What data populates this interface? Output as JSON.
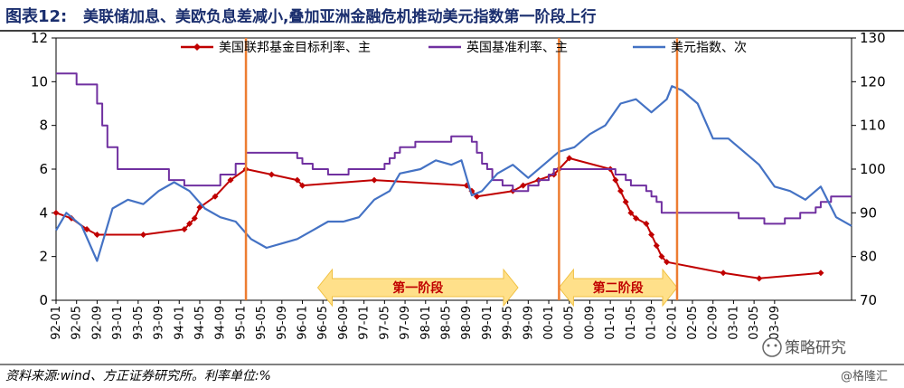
{
  "figure": {
    "title_label": "图表12:",
    "title": "美联储加息、美欧负息差减小,叠加亚洲金融危机推动美元指数第一阶段上行",
    "source": "资料来源:wind、方正证券研究所。利率单位:%"
  },
  "watermarks": {
    "wechat": "策略研究",
    "brand": "@格隆汇"
  },
  "colors": {
    "title": "#1a2e6e",
    "fed": "#c00000",
    "uk": "#7030a0",
    "dxy": "#4472c4",
    "marker_line": "#ed7d31",
    "stage_fill": "#ffe08a",
    "stage_text": "#c00000"
  },
  "chart_data": {
    "type": "line",
    "title": "",
    "xlabel": "",
    "ylabel": "",
    "ylim": [
      0,
      12
    ],
    "y2lim": [
      70,
      130
    ],
    "yticks": [
      "0",
      "2",
      "4",
      "6",
      "8",
      "10",
      "12"
    ],
    "y2ticks": [
      "70",
      "80",
      "90",
      "100",
      "110",
      "120",
      "130"
    ],
    "x_start": "1992-01",
    "x_end": "2004-12",
    "xticks": [
      "92-01",
      "92-05",
      "92-09",
      "93-01",
      "93-05",
      "93-09",
      "94-01",
      "94-05",
      "94-09",
      "95-01",
      "95-05",
      "95-09",
      "96-01",
      "96-05",
      "96-09",
      "97-01",
      "97-05",
      "97-09",
      "98-01",
      "98-05",
      "98-09",
      "99-01",
      "99-05",
      "99-09",
      "00-01",
      "00-05",
      "00-09",
      "01-01",
      "01-05",
      "01-09",
      "02-01",
      "02-05",
      "02-09",
      "03-01",
      "03-05",
      "03-09"
    ],
    "legend_position": "top",
    "grid": false,
    "series": [
      {
        "name": "美国联邦基金目标利率、主",
        "axis": "left",
        "color": "#c00000",
        "style": "line-diamond",
        "x": [
          "1992-01",
          "1992-04",
          "1992-07",
          "1992-09",
          "1993-06",
          "1994-02",
          "1994-03",
          "1994-04",
          "1994-05",
          "1994-08",
          "1994-11",
          "1995-02",
          "1995-07",
          "1995-12",
          "1996-01",
          "1997-03",
          "1998-09",
          "1998-10",
          "1998-11",
          "1999-06",
          "1999-08",
          "1999-11",
          "2000-02",
          "2000-03",
          "2000-05",
          "2001-01",
          "2001-02",
          "2001-03",
          "2001-04",
          "2001-05",
          "2001-06",
          "2001-08",
          "2001-09",
          "2001-10",
          "2001-11",
          "2001-12",
          "2002-11",
          "2003-06",
          "2004-06"
        ],
        "values": [
          4.0,
          3.75,
          3.25,
          3.0,
          3.0,
          3.25,
          3.5,
          3.75,
          4.25,
          4.75,
          5.5,
          6.0,
          5.75,
          5.5,
          5.25,
          5.5,
          5.25,
          5.0,
          4.75,
          5.0,
          5.25,
          5.5,
          5.75,
          6.0,
          6.5,
          6.0,
          5.5,
          5.0,
          4.5,
          4.0,
          3.75,
          3.5,
          3.0,
          2.5,
          2.0,
          1.75,
          1.25,
          1.0,
          1.25
        ]
      },
      {
        "name": "英国基准利率、主",
        "axis": "left",
        "color": "#7030a0",
        "style": "step",
        "x": [
          "1992-01",
          "1992-05",
          "1992-09",
          "1992-10",
          "1992-11",
          "1993-01",
          "1993-11",
          "1994-02",
          "1994-09",
          "1994-12",
          "1995-02",
          "1995-12",
          "1996-01",
          "1996-03",
          "1996-06",
          "1996-10",
          "1997-05",
          "1997-06",
          "1997-07",
          "1997-08",
          "1997-11",
          "1998-06",
          "1998-10",
          "1998-11",
          "1998-12",
          "1999-01",
          "1999-02",
          "1999-04",
          "1999-06",
          "1999-09",
          "1999-11",
          "2000-01",
          "2000-02",
          "2001-02",
          "2001-04",
          "2001-05",
          "2001-08",
          "2001-09",
          "2001-10",
          "2001-11",
          "2003-02",
          "2003-07",
          "2003-11",
          "2004-02",
          "2004-05",
          "2004-06",
          "2004-08"
        ],
        "values": [
          10.375,
          9.875,
          9.0,
          8.0,
          7.0,
          6.0,
          5.5,
          5.25,
          5.75,
          6.25,
          6.75,
          6.5,
          6.25,
          6.0,
          5.75,
          6.0,
          6.25,
          6.5,
          6.75,
          7.0,
          7.25,
          7.5,
          7.25,
          6.75,
          6.25,
          6.0,
          5.5,
          5.25,
          5.0,
          5.25,
          5.5,
          5.75,
          6.0,
          5.75,
          5.5,
          5.25,
          5.0,
          4.75,
          4.5,
          4.0,
          3.75,
          3.5,
          3.75,
          4.0,
          4.25,
          4.5,
          4.75
        ]
      },
      {
        "name": "美元指数、次",
        "axis": "right",
        "color": "#4472c4",
        "style": "line",
        "x": [
          "1992-01",
          "1992-03",
          "1992-06",
          "1992-09",
          "1992-12",
          "1993-03",
          "1993-06",
          "1993-09",
          "1993-12",
          "1994-03",
          "1994-06",
          "1994-09",
          "1994-12",
          "1995-03",
          "1995-06",
          "1995-09",
          "1995-12",
          "1996-03",
          "1996-06",
          "1996-09",
          "1996-12",
          "1997-03",
          "1997-06",
          "1997-08",
          "1997-12",
          "1998-03",
          "1998-06",
          "1998-08",
          "1998-10",
          "1998-12",
          "1999-03",
          "1999-06",
          "1999-09",
          "1999-12",
          "2000-03",
          "2000-06",
          "2000-09",
          "2000-12",
          "2001-03",
          "2001-06",
          "2001-09",
          "2001-12",
          "2002-01",
          "2002-03",
          "2002-06",
          "2002-09",
          "2002-12",
          "2003-03",
          "2003-06",
          "2003-09",
          "2003-12",
          "2004-03",
          "2004-06",
          "2004-09",
          "2004-12"
        ],
        "values": [
          86,
          90,
          87,
          79,
          91,
          93,
          92,
          95,
          97,
          95,
          91,
          89,
          88,
          84,
          82,
          83,
          84,
          86,
          88,
          88,
          89,
          93,
          95,
          99,
          100,
          102,
          101,
          102,
          94,
          95,
          99,
          101,
          98,
          101,
          104,
          105,
          108,
          110,
          115,
          116,
          113,
          116,
          119,
          118,
          115,
          107,
          107,
          104,
          101,
          96,
          95,
          93,
          96,
          89,
          87
        ]
      }
    ],
    "vertical_markers": [
      "1995-02",
      "2000-03",
      "2002-02"
    ],
    "annotations": [
      {
        "text": "第一阶段",
        "from": "1996-04",
        "to": "1999-07"
      },
      {
        "text": "第二阶段",
        "from": "2000-03",
        "to": "2002-02"
      }
    ]
  }
}
